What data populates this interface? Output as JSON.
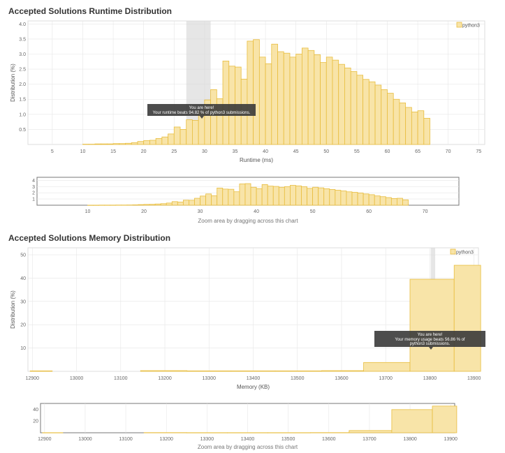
{
  "runtime_section": {
    "title": "Accepted Solutions Runtime Distribution"
  },
  "memory_section": {
    "title": "Accepted Solutions Memory Distribution"
  },
  "colors": {
    "bar_fill": "#f8e4a8",
    "bar_stroke": "#e8bd3e",
    "tooltip_bg": "#3a3a3a",
    "highlight": "#d9d9d9",
    "grid": "#e6e6e6",
    "frame": "#666666"
  },
  "zoom_hint": "Zoom area by dragging across this chart",
  "chart_data": [
    {
      "id": "runtime-main",
      "type": "bar",
      "xlabel": "Runtime (ms)",
      "ylabel": "Distribution (%)",
      "xlim": [
        1,
        76
      ],
      "ylim": [
        0,
        4.1
      ],
      "xticks": [
        5,
        10,
        15,
        20,
        25,
        30,
        35,
        40,
        45,
        50,
        55,
        60,
        65,
        70,
        75
      ],
      "yticks": [
        0.5,
        1.0,
        1.5,
        2.0,
        2.5,
        3.0,
        3.5,
        4.0
      ],
      "ytick_labels": [
        "0.5",
        "1.0",
        "1.5",
        "2.0",
        "2.5",
        "3.0",
        "3.5",
        "4.0"
      ],
      "legend": "python3",
      "legend_position": "top-right",
      "highlight_range": [
        27,
        31
      ],
      "tooltip": {
        "line1": "You are here!",
        "line2": "Your runtime beats 94.82 % of python3 submissions."
      },
      "series": [
        {
          "name": "python3",
          "x": [
            10,
            11,
            12,
            13,
            14,
            15,
            16,
            17,
            18,
            19,
            20,
            21,
            22,
            23,
            24,
            25,
            26,
            27,
            28,
            29,
            30,
            31,
            32,
            33,
            34,
            35,
            36,
            37,
            38,
            39,
            40,
            41,
            42,
            43,
            44,
            45,
            46,
            47,
            48,
            49,
            50,
            51,
            52,
            53,
            54,
            55,
            56,
            57,
            58,
            59,
            60,
            61,
            62,
            63,
            64,
            65,
            66
          ],
          "values": [
            0.01,
            0.01,
            0.02,
            0.02,
            0.02,
            0.03,
            0.03,
            0.04,
            0.06,
            0.1,
            0.13,
            0.14,
            0.2,
            0.25,
            0.35,
            0.58,
            0.5,
            0.82,
            0.8,
            1.12,
            1.48,
            1.82,
            1.52,
            2.77,
            2.6,
            2.57,
            2.17,
            3.43,
            3.48,
            2.9,
            2.68,
            3.33,
            3.08,
            3.03,
            2.9,
            3.0,
            3.2,
            3.12,
            2.98,
            2.72,
            2.9,
            2.8,
            2.66,
            2.54,
            2.42,
            2.3,
            2.16,
            2.08,
            1.97,
            1.82,
            1.7,
            1.5,
            1.38,
            1.23,
            1.08,
            1.12,
            0.87
          ]
        }
      ]
    },
    {
      "id": "runtime-nav",
      "type": "bar",
      "xlim": [
        1,
        76
      ],
      "ylim": [
        0,
        4.5
      ],
      "xticks": [
        10,
        20,
        30,
        40,
        50,
        60,
        70
      ],
      "yticks": [
        1,
        2,
        3,
        4
      ],
      "ytick_labels": [
        "1",
        "2",
        "3",
        "4"
      ]
    },
    {
      "id": "memory-main",
      "type": "bar",
      "xlabel": "Memory (KB)",
      "ylabel": "Distribution (%)",
      "xlim": [
        12890,
        13910
      ],
      "ylim": [
        0,
        53
      ],
      "xticks": [
        12900,
        13000,
        13100,
        13200,
        13300,
        13400,
        13500,
        13600,
        13700,
        13800,
        13900
      ],
      "yticks": [
        10,
        20,
        30,
        40,
        50
      ],
      "ytick_labels": [
        "10",
        "20",
        "30",
        "40",
        "50"
      ],
      "legend": "python3",
      "legend_position": "top-right",
      "highlight_range": [
        13802,
        13812
      ],
      "tooltip": {
        "line1": "You are here!",
        "line2": "Your memory usage beats 56.86 % of python3 submissions."
      },
      "series": [
        {
          "name": "python3",
          "x": [
            12895,
            13145,
            13250,
            13350,
            13450,
            13555,
            13650,
            13755,
            13855
          ],
          "x_end": [
            12945,
            13250,
            13350,
            13450,
            13555,
            13650,
            13755,
            13855,
            13915
          ],
          "values": [
            0.2,
            0.3,
            0.2,
            0.2,
            0.2,
            0.3,
            3.8,
            39.5,
            45.5
          ]
        }
      ]
    },
    {
      "id": "memory-nav",
      "type": "bar",
      "xlim": [
        12890,
        13910
      ],
      "ylim": [
        0,
        50
      ],
      "xticks": [
        12900,
        13000,
        13100,
        13200,
        13300,
        13400,
        13500,
        13600,
        13700,
        13800,
        13900
      ],
      "yticks": [
        20,
        40
      ],
      "ytick_labels": [
        "20",
        "40"
      ]
    }
  ]
}
